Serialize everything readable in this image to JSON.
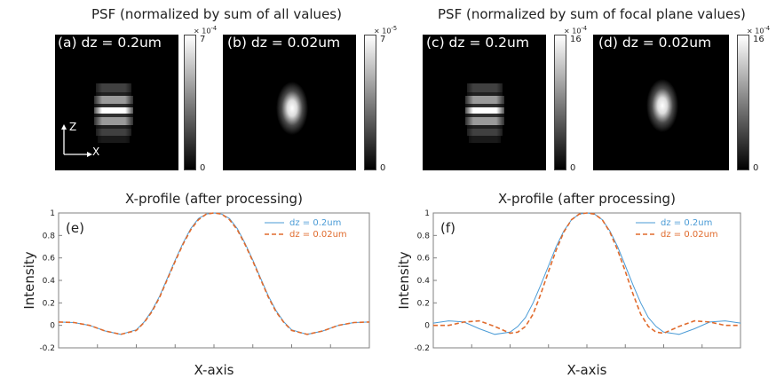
{
  "figure": {
    "left_group_title": "PSF (normalized by sum of all values)",
    "right_group_title": "PSF (normalized by sum of focal plane values)"
  },
  "colors": {
    "series_1": "#4a9bd6",
    "series_2": "#e06b2d",
    "panel_bg": "#000000",
    "axis": "#808080"
  },
  "psf_panels": [
    {
      "id": "a",
      "label": "(a) dz = 0.2um",
      "pattern": "striped",
      "cbar_exponent": "× 10",
      "cbar_power": "-4",
      "cbar_max": "7",
      "cbar_min": "0"
    },
    {
      "id": "b",
      "label": "(b) dz = 0.02um",
      "pattern": "smooth",
      "cbar_exponent": "× 10",
      "cbar_power": "-5",
      "cbar_max": "7",
      "cbar_min": "0"
    },
    {
      "id": "c",
      "label": "(c) dz = 0.2um",
      "pattern": "striped",
      "cbar_exponent": "× 10",
      "cbar_power": "-4",
      "cbar_max": "16",
      "cbar_min": "0"
    },
    {
      "id": "d",
      "label": "(d) dz = 0.02um",
      "pattern": "smooth",
      "cbar_exponent": "× 10",
      "cbar_power": "-4",
      "cbar_max": "16",
      "cbar_min": "0"
    }
  ],
  "axes_indicator": {
    "z_label": "Z",
    "x_label": "X"
  },
  "chart_data": [
    {
      "type": "line",
      "panel_label": "(e)",
      "title": "X-profile (after processing)",
      "xlabel": "X-axis",
      "ylabel": "Intensity",
      "ylim": [
        -0.2,
        1
      ],
      "yticks": [
        "1",
        "0.8",
        "0.6",
        "0.4",
        "0.2",
        "0",
        "-0.2"
      ],
      "legend_position": "top-right",
      "series": [
        {
          "name": "dz = 0.2um",
          "style": "solid",
          "x": [
            -1.0,
            -0.9,
            -0.8,
            -0.7,
            -0.6,
            -0.5,
            -0.45,
            -0.4,
            -0.35,
            -0.3,
            -0.25,
            -0.2,
            -0.15,
            -0.1,
            -0.05,
            0.0,
            0.05,
            0.1,
            0.15,
            0.2,
            0.25,
            0.3,
            0.35,
            0.4,
            0.45,
            0.5,
            0.6,
            0.7,
            0.8,
            0.9,
            1.0
          ],
          "y": [
            0.03,
            0.025,
            0.0,
            -0.05,
            -0.08,
            -0.04,
            0.03,
            0.13,
            0.26,
            0.42,
            0.58,
            0.73,
            0.86,
            0.95,
            0.99,
            1.0,
            0.99,
            0.95,
            0.86,
            0.73,
            0.58,
            0.42,
            0.26,
            0.13,
            0.03,
            -0.04,
            -0.08,
            -0.05,
            0.0,
            0.025,
            0.03
          ]
        },
        {
          "name": "dz = 0.02um",
          "style": "dashed",
          "x": [
            -1.0,
            -0.9,
            -0.8,
            -0.7,
            -0.6,
            -0.5,
            -0.45,
            -0.4,
            -0.35,
            -0.3,
            -0.25,
            -0.2,
            -0.15,
            -0.1,
            -0.05,
            0.0,
            0.05,
            0.1,
            0.15,
            0.2,
            0.25,
            0.3,
            0.35,
            0.4,
            0.45,
            0.5,
            0.6,
            0.7,
            0.8,
            0.9,
            1.0
          ],
          "y": [
            0.03,
            0.025,
            0.0,
            -0.05,
            -0.08,
            -0.045,
            0.025,
            0.12,
            0.25,
            0.41,
            0.57,
            0.72,
            0.85,
            0.94,
            0.99,
            1.0,
            0.99,
            0.94,
            0.85,
            0.72,
            0.57,
            0.41,
            0.25,
            0.12,
            0.025,
            -0.045,
            -0.08,
            -0.05,
            0.0,
            0.025,
            0.03
          ]
        }
      ]
    },
    {
      "type": "line",
      "panel_label": "(f)",
      "title": "X-profile (after processing)",
      "xlabel": "X-axis",
      "ylabel": "Intensity",
      "ylim": [
        -0.2,
        1
      ],
      "yticks": [
        "1",
        "0.8",
        "0.6",
        "0.4",
        "0.2",
        "0",
        "-0.2"
      ],
      "legend_position": "top-right",
      "series": [
        {
          "name": "dz = 0.2um",
          "style": "solid",
          "x": [
            -1.0,
            -0.9,
            -0.8,
            -0.7,
            -0.6,
            -0.5,
            -0.45,
            -0.4,
            -0.35,
            -0.3,
            -0.25,
            -0.2,
            -0.15,
            -0.1,
            -0.05,
            0.0,
            0.05,
            0.1,
            0.15,
            0.2,
            0.25,
            0.3,
            0.35,
            0.4,
            0.45,
            0.5,
            0.6,
            0.7,
            0.8,
            0.9,
            1.0
          ],
          "y": [
            0.02,
            0.04,
            0.03,
            -0.03,
            -0.08,
            -0.06,
            -0.01,
            0.07,
            0.2,
            0.36,
            0.53,
            0.7,
            0.84,
            0.94,
            0.99,
            1.0,
            0.99,
            0.94,
            0.84,
            0.7,
            0.53,
            0.36,
            0.2,
            0.07,
            -0.01,
            -0.06,
            -0.08,
            -0.03,
            0.03,
            0.04,
            0.02
          ]
        },
        {
          "name": "dz = 0.02um",
          "style": "dashed",
          "x": [
            -1.0,
            -0.9,
            -0.8,
            -0.7,
            -0.6,
            -0.5,
            -0.45,
            -0.4,
            -0.35,
            -0.3,
            -0.25,
            -0.2,
            -0.15,
            -0.1,
            -0.05,
            0.0,
            0.05,
            0.1,
            0.15,
            0.2,
            0.25,
            0.3,
            0.35,
            0.4,
            0.45,
            0.5,
            0.6,
            0.7,
            0.8,
            0.9,
            1.0
          ],
          "y": [
            0.0,
            0.0,
            0.03,
            0.04,
            -0.01,
            -0.07,
            -0.06,
            -0.01,
            0.1,
            0.28,
            0.48,
            0.67,
            0.83,
            0.94,
            0.99,
            1.0,
            0.99,
            0.94,
            0.83,
            0.67,
            0.48,
            0.28,
            0.1,
            -0.01,
            -0.06,
            -0.07,
            -0.01,
            0.04,
            0.03,
            0.0,
            0.0
          ]
        }
      ]
    }
  ]
}
